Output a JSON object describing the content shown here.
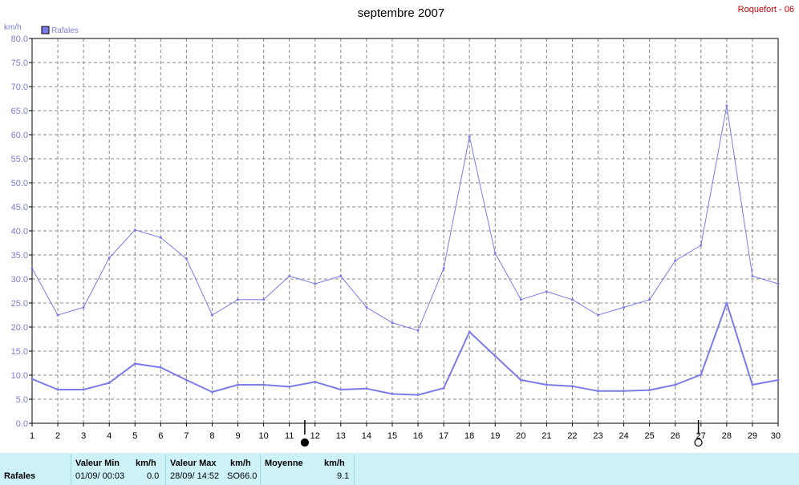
{
  "chart_data": {
    "type": "line",
    "title": "septembre 2007",
    "station": "Roquefort - 06",
    "unit": "km/h",
    "ylim": [
      0,
      80
    ],
    "yticks": [
      "0.0",
      "5.0",
      "10.0",
      "15.0",
      "20.0",
      "25.0",
      "30.0",
      "35.0",
      "40.0",
      "45.0",
      "50.0",
      "55.0",
      "60.0",
      "65.0",
      "70.0",
      "75.0",
      "80.0"
    ],
    "x": [
      1,
      2,
      3,
      4,
      5,
      6,
      7,
      8,
      9,
      10,
      11,
      12,
      13,
      14,
      15,
      16,
      17,
      18,
      19,
      20,
      21,
      22,
      23,
      24,
      25,
      26,
      27,
      28,
      29,
      30
    ],
    "grid": true,
    "legend": {
      "label": "Rafales",
      "position": "top-left"
    },
    "series": [
      {
        "name": "Rafales",
        "color": "#7b7bea",
        "values": [
          32.2,
          22.5,
          24.1,
          34.4,
          40.2,
          38.6,
          34.2,
          22.5,
          25.7,
          25.7,
          30.6,
          29.0,
          30.6,
          24.1,
          20.9,
          19.3,
          32.2,
          59.6,
          35.4,
          25.7,
          27.4,
          25.7,
          22.5,
          24.1,
          25.7,
          33.8,
          37.0,
          66.0,
          30.6,
          29.0
        ]
      },
      {
        "color": "#7b7bea",
        "values": [
          9.2,
          7.0,
          7.0,
          8.4,
          12.4,
          11.6,
          9.0,
          6.5,
          8.0,
          8.0,
          7.6,
          8.6,
          7.0,
          7.2,
          6.1,
          5.9,
          7.3,
          19.0,
          14.0,
          9.0,
          8.0,
          7.7,
          6.7,
          6.7,
          6.9,
          8.0,
          10.1,
          25.0,
          8.0,
          9.0
        ]
      }
    ],
    "moon_markers": [
      {
        "phase": "new",
        "day": 11.6
      },
      {
        "phase": "full",
        "day": 26.9
      }
    ]
  },
  "info": {
    "row_label": "Rafales",
    "min_label": "Valeur Min",
    "min_unit": "km/h",
    "min_datetime": "01/09/  00:03",
    "min_value": "0.0",
    "max_label": "Valeur Max",
    "max_unit": "km/h",
    "max_datetime": "28/09/  14:52",
    "max_dir": "SO",
    "max_value": "66.0",
    "avg_label": "Moyenne",
    "avg_unit": "km/h",
    "avg_value": "9.1"
  },
  "colors": {
    "series": "#7b7bea",
    "axis_text": "#7b7bd6",
    "station": "#cc0000",
    "info_bg": "#cdf3f9"
  }
}
